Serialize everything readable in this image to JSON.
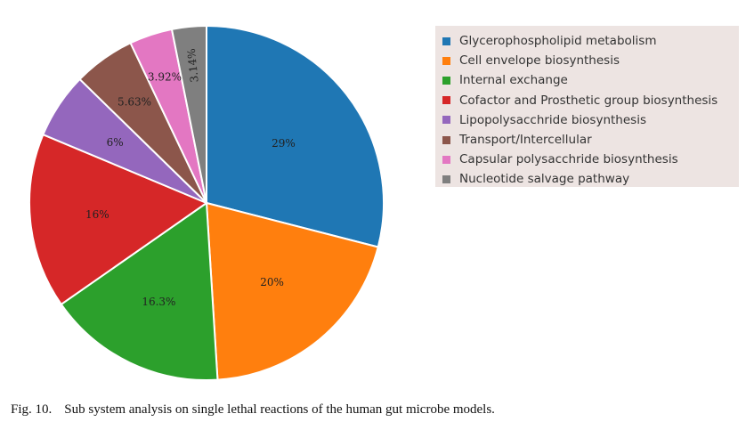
{
  "chart_data": {
    "type": "pie",
    "categories": [
      "Glycerophospholipid metabolism",
      "Cell envelope biosynthesis",
      "Internal exchange",
      "Cofactor and Prosthetic group biosynthesis",
      "Lipopolysacchride biosynthesis",
      "Transport/Intercellular",
      "Capsular polysacchride biosynthesis",
      "Nucleotide salvage pathway"
    ],
    "values": [
      29,
      20,
      16.3,
      16,
      6,
      5.63,
      3.92,
      3.14
    ],
    "labels": [
      "29%",
      "20%",
      "16.3%",
      "16%",
      "6%",
      "5.63%",
      "3.92%",
      "3.14%"
    ],
    "colors": [
      "#1f77b4",
      "#ff7f0e",
      "#2ca02c",
      "#d62728",
      "#9467bd",
      "#8c564b",
      "#e377c2",
      "#7f7f7f"
    ],
    "legend_position": "top-right",
    "direction": "clockwise",
    "start": "top"
  },
  "caption": {
    "number": "Fig. 10.",
    "text": "Sub system analysis on single lethal reactions of the human gut microbe models."
  }
}
